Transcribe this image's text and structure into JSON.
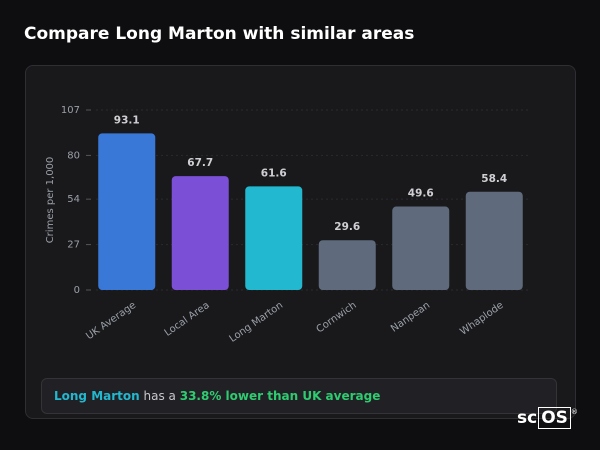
{
  "header": {
    "title": "Compare Long Marton with similar areas"
  },
  "chart_data": {
    "type": "bar",
    "y_label": "Crimes per 1,000",
    "categories": [
      "UK Average",
      "Local Area",
      "Long Marton",
      "Cornwich",
      "Nanpean",
      "Whaplode"
    ],
    "values": [
      93.1,
      67.7,
      61.6,
      29.6,
      49.6,
      58.4
    ],
    "colors": [
      "#3a78d8",
      "#7b4fd6",
      "#22b8cf",
      "#5f6b7c",
      "#5f6b7c",
      "#5f6b7c"
    ],
    "ylim": [
      0,
      107
    ],
    "yticks": [
      0,
      27,
      54,
      80,
      107
    ],
    "grid": true
  },
  "summary": {
    "area": "Long Marton",
    "text": "has a",
    "comparison": "33.8% lower than UK average"
  },
  "logo": {
    "left": "sc",
    "right": "OS",
    "mark": "®"
  }
}
